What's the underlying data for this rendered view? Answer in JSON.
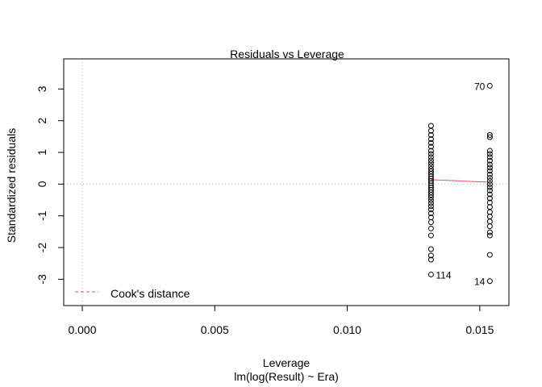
{
  "chart_data": {
    "type": "scatter",
    "title": "Residuals vs Leverage",
    "xlabel": "Leverage",
    "sublabel": "lm(log(Result) ~ Era)",
    "ylabel": "Standardized residuals",
    "xlim": [
      -0.0007,
      0.0161
    ],
    "ylim": [
      -3.83,
      3.95
    ],
    "x_ticks": [
      {
        "value": 0.0,
        "label": "0.000"
      },
      {
        "value": 0.005,
        "label": "0.005"
      },
      {
        "value": 0.01,
        "label": "0.010"
      },
      {
        "value": 0.015,
        "label": "0.015"
      }
    ],
    "y_ticks": [
      {
        "value": -3,
        "label": "-3"
      },
      {
        "value": -2,
        "label": "-2"
      },
      {
        "value": -1,
        "label": "-1"
      },
      {
        "value": 0,
        "label": "0"
      },
      {
        "value": 1,
        "label": "1"
      },
      {
        "value": 2,
        "label": "2"
      },
      {
        "value": 3,
        "label": "3"
      }
    ],
    "reference_lines": {
      "x": 0,
      "y": 0
    },
    "series": [
      {
        "x": 0.01316,
        "values": [
          1.84,
          1.68,
          1.55,
          1.42,
          1.3,
          1.18,
          1.05,
          0.95,
          0.85,
          0.75,
          0.66,
          0.57,
          0.48,
          0.4,
          0.32,
          0.24,
          0.17,
          0.1,
          0.03,
          -0.04,
          -0.11,
          -0.18,
          -0.26,
          -0.34,
          -0.42,
          -0.51,
          -0.6,
          -0.7,
          -0.8,
          -0.92,
          -1.05,
          -1.2,
          -1.4,
          -1.62,
          -2.05,
          -2.25,
          -2.38,
          -2.85
        ]
      },
      {
        "x": 0.01538,
        "values": [
          3.1,
          1.55,
          1.48,
          1.05,
          0.95,
          0.85,
          0.74,
          0.62,
          0.52,
          0.42,
          0.3,
          0.2,
          0.1,
          0.0,
          -0.1,
          -0.2,
          -0.32,
          -0.45,
          -0.58,
          -0.72,
          -0.88,
          -1.02,
          -1.18,
          -1.33,
          -1.52,
          -1.62,
          -2.23,
          -3.06
        ]
      }
    ],
    "smooth_line": [
      [
        0.01316,
        0.14
      ],
      [
        0.0142,
        0.1
      ],
      [
        0.01538,
        0.06
      ]
    ],
    "point_labels": [
      {
        "text": "70",
        "x": 0.01538,
        "y": 3.1,
        "side": "left"
      },
      {
        "text": "114",
        "x": 0.01316,
        "y": -2.85,
        "side": "right"
      },
      {
        "text": "14",
        "x": 0.01538,
        "y": -3.06,
        "side": "left"
      }
    ],
    "legend": {
      "position": "bottom-left",
      "label": "Cook's distance"
    },
    "colors": {
      "points": "#000000",
      "smooth": "#DF536B",
      "reference": "#BEBEBE",
      "frame": "#000000"
    }
  }
}
